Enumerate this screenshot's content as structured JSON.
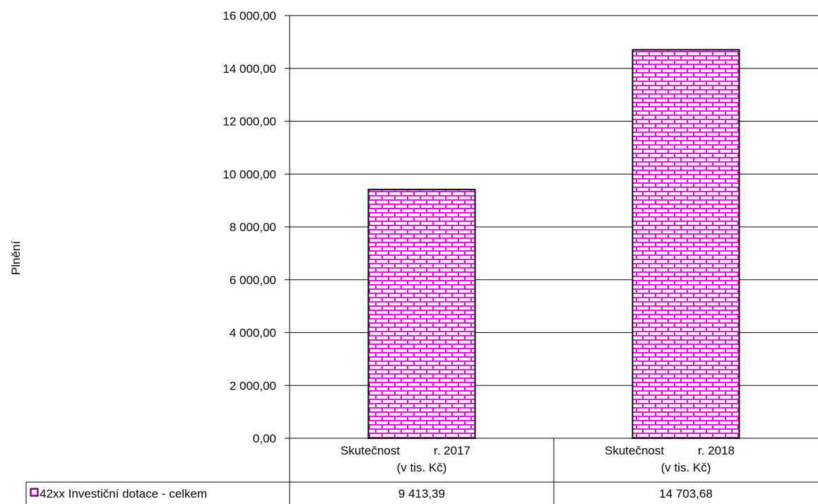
{
  "chart_data": {
    "type": "bar",
    "title": "",
    "xlabel": "",
    "ylabel": "Plnění",
    "ylim": [
      0,
      16000
    ],
    "yticks": [
      "0,00",
      "2 000,00",
      "4 000,00",
      "6 000,00",
      "8 000,00",
      "10 000,00",
      "12 000,00",
      "14 000,00",
      "16 000,00"
    ],
    "ytick_values": [
      0,
      2000,
      4000,
      6000,
      8000,
      10000,
      12000,
      14000,
      16000
    ],
    "categories": [
      {
        "line1_left": "Skutečnost",
        "line1_right": "r. 2017",
        "line2": "(v tis. Kč)"
      },
      {
        "line1_left": "Skutečnost",
        "line1_right": "r. 2018",
        "line2": "(v tis. Kč)"
      }
    ],
    "series": [
      {
        "name": "42xx Investiční dotace - celkem",
        "values": [
          9413.39,
          14703.68
        ],
        "value_labels": [
          "9 413,39",
          "14 703,68"
        ],
        "color": "#ff00ff",
        "pattern": "brick"
      }
    ],
    "grid": true,
    "legend": "data-table"
  }
}
